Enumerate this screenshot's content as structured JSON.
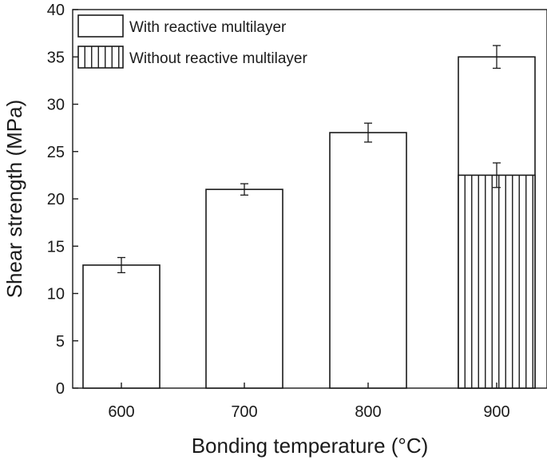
{
  "chart_data": {
    "type": "bar",
    "xlabel": "Bonding temperature (°C)",
    "ylabel": "Shear strength (MPa)",
    "categories": [
      "600",
      "700",
      "800",
      "900"
    ],
    "ylim": [
      0,
      40
    ],
    "yticks": [
      "0",
      "5",
      "10",
      "15",
      "20",
      "25",
      "30",
      "35",
      "40"
    ],
    "series": [
      {
        "name": "With reactive multilayer",
        "values": [
          13,
          21,
          27,
          35
        ],
        "errors": [
          0.8,
          0.6,
          1.0,
          1.2
        ],
        "pattern": "plain"
      },
      {
        "name": "Without reactive multilayer",
        "values": [
          null,
          null,
          null,
          22.5
        ],
        "errors": [
          null,
          null,
          null,
          1.3
        ],
        "pattern": "vertical-lines"
      }
    ],
    "legend_position": "top-left",
    "grid": false,
    "colors": {
      "stroke": "#1a1a1a",
      "fill": "#ffffff"
    }
  }
}
